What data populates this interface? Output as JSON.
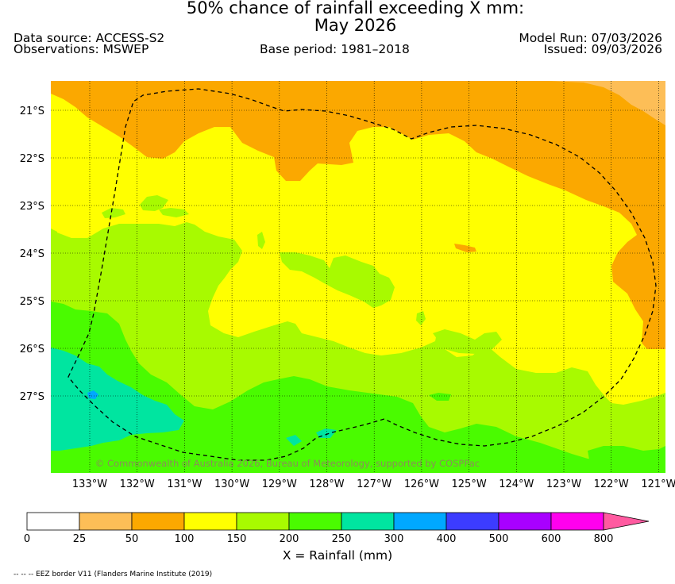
{
  "header": {
    "title_line1": "50% chance of rainfall exceeding X mm:",
    "title_line2": "May 2026",
    "data_source": "Data source: ACCESS-S2",
    "observations": "Observations: MSWEP",
    "base_period": "Base period: 1981–2018",
    "model_run": "Model Run: 07/03/2026",
    "issued": "Issued: 09/03/2026"
  },
  "map": {
    "copyright": "© Commonwealth of Australia 2026, Bureau of Meteorology, supported by COSPPac",
    "lat_labels": [
      "21°S",
      "22°S",
      "23°S",
      "24°S",
      "25°S",
      "26°S",
      "27°S"
    ],
    "lon_labels": [
      "133°W",
      "132°W",
      "131°W",
      "130°W",
      "129°W",
      "128°W",
      "127°W",
      "126°W",
      "125°W",
      "124°W",
      "123°W",
      "122°W",
      "121°W"
    ],
    "field_colors": {
      "c_25_50": "#fdbe57",
      "c_50_100": "#fba800",
      "c_100_150": "#ffff00",
      "c_150_200": "#a8fa00",
      "c_200_250": "#4afb00",
      "c_250_300": "#00e5a0",
      "c_300_400": "#00a8ff"
    },
    "boundary_style": "dashed"
  },
  "colorbar": {
    "ticks": [
      "0",
      "25",
      "50",
      "100",
      "150",
      "200",
      "250",
      "300",
      "400",
      "500",
      "600",
      "800"
    ],
    "colors": [
      "#ffffff",
      "#fdbe57",
      "#fba800",
      "#ffff00",
      "#a8fa00",
      "#4afb00",
      "#00e5a0",
      "#00a8ff",
      "#3c3cff",
      "#a800ff",
      "#ff00ee",
      "#ff5aa0"
    ],
    "label": "X = Rainfall (mm)"
  },
  "footnote": "-- -- -- EEZ border V11 (Flanders Marine Institute (2019)"
}
